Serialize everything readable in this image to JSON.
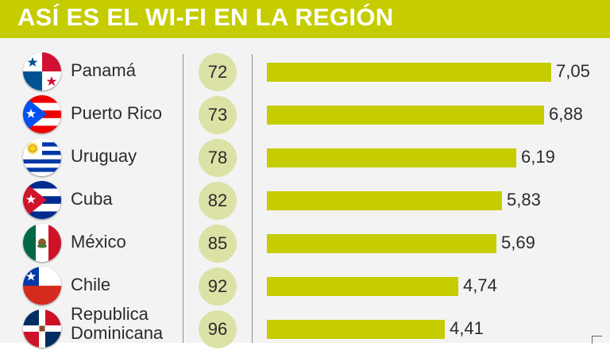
{
  "header": {
    "title": "ASÍ ES EL WI-FI EN LA REGIÓN"
  },
  "colors": {
    "accent": "#c5cc00",
    "rank_circle": "#dce2a6",
    "panel_bg": "#f3f3f3"
  },
  "chart_data": {
    "type": "bar",
    "orientation": "horizontal",
    "title": "ASÍ ES EL WI-FI EN LA REGIÓN",
    "categories": [
      "Panamá",
      "Puerto Rico",
      "Uruguay",
      "Cuba",
      "México",
      "Chile",
      "Republica Dominicana"
    ],
    "ranks": [
      "72",
      "73",
      "78",
      "82",
      "85",
      "92",
      "96"
    ],
    "values": [
      7.05,
      6.88,
      6.19,
      5.83,
      5.69,
      4.74,
      4.41
    ],
    "value_labels": [
      "7,05",
      "6,88",
      "6,19",
      "5,83",
      "5,69",
      "4,74",
      "4,41"
    ],
    "flags": [
      "panama-flag-icon",
      "puerto-rico-flag-icon",
      "uruguay-flag-icon",
      "cuba-flag-icon",
      "mexico-flag-icon",
      "chile-flag-icon",
      "dominican-republic-flag-icon"
    ],
    "xlim": [
      0,
      7.05
    ],
    "grid": false,
    "legend": "none"
  }
}
